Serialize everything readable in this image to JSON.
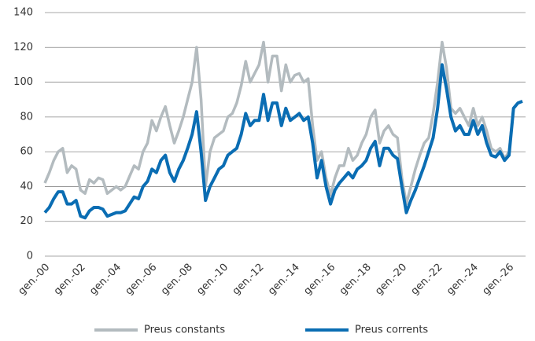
{
  "chart_data": {
    "type": "line",
    "categories": [
      "gen.-00",
      null,
      null,
      null,
      null,
      null,
      null,
      null,
      "gen.-02",
      null,
      null,
      null,
      null,
      null,
      null,
      null,
      "gen.-04",
      null,
      null,
      null,
      null,
      null,
      null,
      null,
      "gen.-06",
      null,
      null,
      null,
      null,
      null,
      null,
      null,
      "gen.-08",
      null,
      null,
      null,
      null,
      null,
      null,
      null,
      "gen.-10",
      null,
      null,
      null,
      null,
      null,
      null,
      null,
      "gen.-12",
      null,
      null,
      null,
      null,
      null,
      null,
      null,
      "gen.-14",
      null,
      null,
      null,
      null,
      null,
      null,
      null,
      "gen.-16",
      null,
      null,
      null,
      null,
      null,
      null,
      null,
      "gen.-18",
      null,
      null,
      null,
      null,
      null,
      null,
      null,
      "gen.-20",
      null,
      null,
      null,
      null,
      null,
      null,
      null,
      "gen.-22",
      null,
      null,
      null,
      null,
      null,
      null,
      null,
      "gen.-24",
      null,
      null,
      null,
      null,
      null,
      null,
      null,
      "gen.-26",
      null,
      null,
      null
    ],
    "series": [
      {
        "name": "Preus constants",
        "color": "#b3bbbf",
        "values": [
          42,
          48,
          55,
          60,
          62,
          48,
          52,
          50,
          38,
          36,
          44,
          42,
          45,
          44,
          36,
          38,
          40,
          38,
          40,
          46,
          52,
          50,
          60,
          65,
          78,
          72,
          80,
          86,
          75,
          65,
          72,
          80,
          90,
          100,
          120,
          90,
          40,
          60,
          68,
          70,
          72,
          80,
          82,
          88,
          98,
          112,
          100,
          105,
          110,
          123,
          100,
          115,
          115,
          95,
          110,
          100,
          104,
          105,
          100,
          102,
          75,
          55,
          60,
          45,
          35,
          45,
          52,
          52,
          62,
          55,
          58,
          65,
          70,
          80,
          84,
          65,
          72,
          75,
          70,
          68,
          45,
          30,
          40,
          50,
          58,
          65,
          68,
          82,
          100,
          123,
          108,
          85,
          82,
          85,
          80,
          75,
          85,
          75,
          80,
          72,
          62,
          60,
          62,
          56,
          60,
          85,
          88,
          89
        ]
      },
      {
        "name": "Preus corrents",
        "color": "#0a6db3",
        "values": [
          25,
          28,
          33,
          37,
          37,
          30,
          30,
          32,
          23,
          22,
          26,
          28,
          28,
          27,
          23,
          24,
          25,
          25,
          26,
          30,
          34,
          33,
          40,
          43,
          50,
          48,
          55,
          58,
          48,
          43,
          50,
          55,
          62,
          70,
          83,
          60,
          32,
          40,
          45,
          50,
          52,
          58,
          60,
          62,
          70,
          82,
          75,
          78,
          78,
          93,
          78,
          88,
          88,
          75,
          85,
          78,
          80,
          82,
          78,
          80,
          65,
          45,
          55,
          40,
          30,
          38,
          42,
          45,
          48,
          45,
          50,
          52,
          55,
          62,
          66,
          52,
          62,
          62,
          58,
          56,
          40,
          25,
          32,
          38,
          45,
          52,
          60,
          68,
          85,
          110,
          96,
          80,
          72,
          75,
          70,
          70,
          78,
          70,
          75,
          65,
          58,
          57,
          60,
          55,
          58,
          85,
          88,
          89
        ]
      }
    ],
    "ylim": [
      0,
      140
    ],
    "yticks": [
      0,
      20,
      40,
      60,
      80,
      100,
      120,
      140
    ],
    "grid": true,
    "legend": "bottom"
  }
}
